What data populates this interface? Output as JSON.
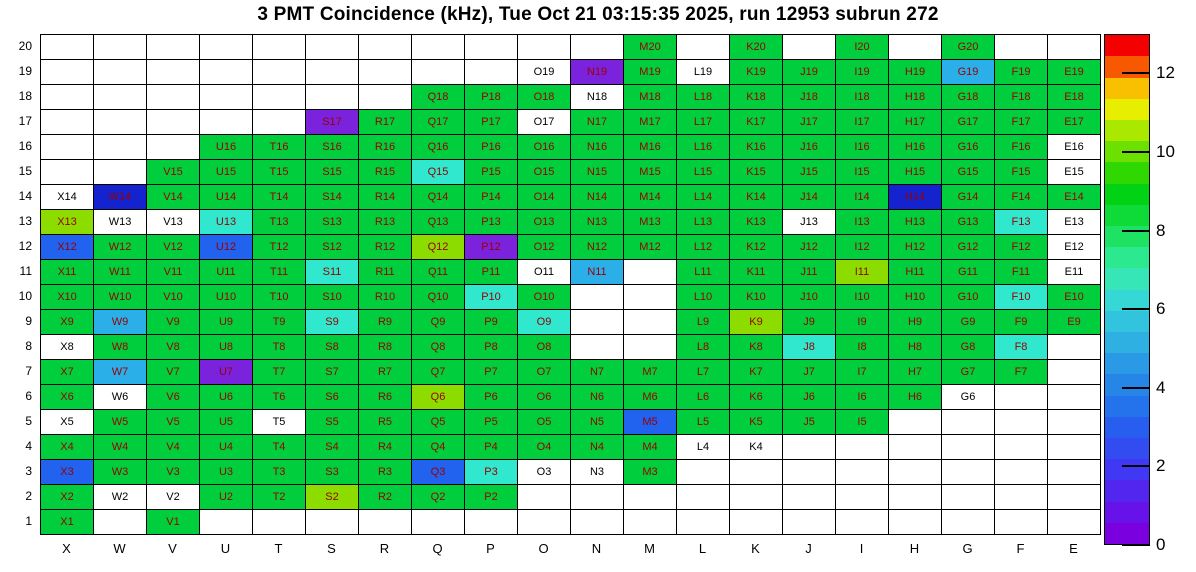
{
  "chart_data": {
    "type": "heatmap",
    "title": "3 PMT Coincidence (kHz), Tue Oct 21 03:15:35 2025, run 12953 subrun 272",
    "title_parts": {
      "metric": "3 PMT Coincidence (kHz)",
      "timestamp": "Tue Oct 21 03:15:35 2025",
      "run": "12953",
      "subrun": "272"
    },
    "columns": [
      "X",
      "W",
      "V",
      "U",
      "T",
      "S",
      "R",
      "Q",
      "P",
      "O",
      "N",
      "M",
      "L",
      "K",
      "J",
      "I",
      "H",
      "G",
      "F",
      "E"
    ],
    "rows": [
      20,
      19,
      18,
      17,
      16,
      15,
      14,
      13,
      12,
      11,
      10,
      9,
      8,
      7,
      6,
      5,
      4,
      3,
      2,
      1
    ],
    "palette": {
      "g": {
        "name": "green",
        "hex": "#00CE3C",
        "approx_kHz": 6.5
      },
      "yg": {
        "name": "yellow-green",
        "hex": "#8CDC00",
        "approx_kHz": 8.5
      },
      "c": {
        "name": "cyan",
        "hex": "#2FE8CE",
        "approx_kHz": 4.8
      },
      "lb": {
        "name": "light-blue",
        "hex": "#2BAFE8",
        "approx_kHz": 3.8
      },
      "b": {
        "name": "blue",
        "hex": "#2162EE",
        "approx_kHz": 2.6
      },
      "nb": {
        "name": "navy-blue",
        "hex": "#1423CE",
        "approx_kHz": 1.8
      },
      "p": {
        "name": "purple",
        "hex": "#7A22DC",
        "approx_kHz": 0.9
      },
      "w": {
        "name": "white-no-value",
        "hex": "#FFFFFF",
        "approx_kHz": null
      }
    },
    "label_color_colored_cells": "#990000",
    "label_color_white_cells": "#000000",
    "cells": [
      [
        null,
        null,
        null,
        null,
        null,
        null,
        null,
        null,
        null,
        null,
        null,
        [
          "M20",
          "g"
        ],
        null,
        [
          "K20",
          "g"
        ],
        null,
        [
          "I20",
          "g"
        ],
        null,
        [
          "G20",
          "g"
        ],
        null,
        null
      ],
      [
        null,
        null,
        null,
        null,
        null,
        null,
        null,
        null,
        null,
        [
          "O19",
          "w"
        ],
        [
          "N19",
          "p"
        ],
        [
          "M19",
          "g"
        ],
        [
          "L19",
          "w"
        ],
        [
          "K19",
          "g"
        ],
        [
          "J19",
          "g"
        ],
        [
          "I19",
          "g"
        ],
        [
          "H19",
          "g"
        ],
        [
          "G19",
          "lb"
        ],
        [
          "F19",
          "g"
        ],
        [
          "E19",
          "g"
        ]
      ],
      [
        null,
        null,
        null,
        null,
        null,
        null,
        null,
        [
          "Q18",
          "g"
        ],
        [
          "P18",
          "g"
        ],
        [
          "O18",
          "g"
        ],
        [
          "N18",
          "w"
        ],
        [
          "M18",
          "g"
        ],
        [
          "L18",
          "g"
        ],
        [
          "K18",
          "g"
        ],
        [
          "J18",
          "g"
        ],
        [
          "I18",
          "g"
        ],
        [
          "H18",
          "g"
        ],
        [
          "G18",
          "g"
        ],
        [
          "F18",
          "g"
        ],
        [
          "E18",
          "g"
        ]
      ],
      [
        null,
        null,
        null,
        null,
        null,
        [
          "S17",
          "p"
        ],
        [
          "R17",
          "g"
        ],
        [
          "Q17",
          "g"
        ],
        [
          "P17",
          "g"
        ],
        [
          "O17",
          "w"
        ],
        [
          "N17",
          "g"
        ],
        [
          "M17",
          "g"
        ],
        [
          "L17",
          "g"
        ],
        [
          "K17",
          "g"
        ],
        [
          "J17",
          "g"
        ],
        [
          "I17",
          "g"
        ],
        [
          "H17",
          "g"
        ],
        [
          "G17",
          "g"
        ],
        [
          "F17",
          "g"
        ],
        [
          "E17",
          "g"
        ]
      ],
      [
        null,
        null,
        null,
        [
          "U16",
          "g"
        ],
        [
          "T16",
          "g"
        ],
        [
          "S16",
          "g"
        ],
        [
          "R16",
          "g"
        ],
        [
          "Q16",
          "g"
        ],
        [
          "P16",
          "g"
        ],
        [
          "O16",
          "g"
        ],
        [
          "N16",
          "g"
        ],
        [
          "M16",
          "g"
        ],
        [
          "L16",
          "g"
        ],
        [
          "K16",
          "g"
        ],
        [
          "J16",
          "g"
        ],
        [
          "I16",
          "g"
        ],
        [
          "H16",
          "g"
        ],
        [
          "G16",
          "g"
        ],
        [
          "F16",
          "g"
        ],
        [
          "E16",
          "w"
        ]
      ],
      [
        null,
        null,
        [
          "V15",
          "g"
        ],
        [
          "U15",
          "g"
        ],
        [
          "T15",
          "g"
        ],
        [
          "S15",
          "g"
        ],
        [
          "R15",
          "g"
        ],
        [
          "Q15",
          "c"
        ],
        [
          "P15",
          "g"
        ],
        [
          "O15",
          "g"
        ],
        [
          "N15",
          "g"
        ],
        [
          "M15",
          "g"
        ],
        [
          "L15",
          "g"
        ],
        [
          "K15",
          "g"
        ],
        [
          "J15",
          "g"
        ],
        [
          "I15",
          "g"
        ],
        [
          "H15",
          "g"
        ],
        [
          "G15",
          "g"
        ],
        [
          "F15",
          "g"
        ],
        [
          "E15",
          "w"
        ]
      ],
      [
        [
          "X14",
          "w"
        ],
        [
          "W14",
          "nb"
        ],
        [
          "V14",
          "g"
        ],
        [
          "U14",
          "g"
        ],
        [
          "T14",
          "g"
        ],
        [
          "S14",
          "g"
        ],
        [
          "R14",
          "g"
        ],
        [
          "Q14",
          "g"
        ],
        [
          "P14",
          "g"
        ],
        [
          "O14",
          "g"
        ],
        [
          "N14",
          "g"
        ],
        [
          "M14",
          "g"
        ],
        [
          "L14",
          "g"
        ],
        [
          "K14",
          "g"
        ],
        [
          "J14",
          "g"
        ],
        [
          "I14",
          "g"
        ],
        [
          "H14",
          "nb"
        ],
        [
          "G14",
          "g"
        ],
        [
          "F14",
          "g"
        ],
        [
          "E14",
          "g"
        ]
      ],
      [
        [
          "X13",
          "yg"
        ],
        [
          "W13",
          "w"
        ],
        [
          "V13",
          "w"
        ],
        [
          "U13",
          "c"
        ],
        [
          "T13",
          "g"
        ],
        [
          "S13",
          "g"
        ],
        [
          "R13",
          "g"
        ],
        [
          "Q13",
          "g"
        ],
        [
          "P13",
          "g"
        ],
        [
          "O13",
          "g"
        ],
        [
          "N13",
          "g"
        ],
        [
          "M13",
          "g"
        ],
        [
          "L13",
          "g"
        ],
        [
          "K13",
          "g"
        ],
        [
          "J13",
          "w"
        ],
        [
          "I13",
          "g"
        ],
        [
          "H13",
          "g"
        ],
        [
          "G13",
          "g"
        ],
        [
          "F13",
          "c"
        ],
        [
          "E13",
          "w"
        ]
      ],
      [
        [
          "X12",
          "b"
        ],
        [
          "W12",
          "g"
        ],
        [
          "V12",
          "g"
        ],
        [
          "U12",
          "b"
        ],
        [
          "T12",
          "g"
        ],
        [
          "S12",
          "g"
        ],
        [
          "R12",
          "g"
        ],
        [
          "Q12",
          "yg"
        ],
        [
          "P12",
          "p"
        ],
        [
          "O12",
          "g"
        ],
        [
          "N12",
          "g"
        ],
        [
          "M12",
          "g"
        ],
        [
          "L12",
          "g"
        ],
        [
          "K12",
          "g"
        ],
        [
          "J12",
          "g"
        ],
        [
          "I12",
          "g"
        ],
        [
          "H12",
          "g"
        ],
        [
          "G12",
          "g"
        ],
        [
          "F12",
          "g"
        ],
        [
          "E12",
          "w"
        ]
      ],
      [
        [
          "X11",
          "g"
        ],
        [
          "W11",
          "g"
        ],
        [
          "V11",
          "g"
        ],
        [
          "U11",
          "g"
        ],
        [
          "T11",
          "g"
        ],
        [
          "S11",
          "c"
        ],
        [
          "R11",
          "g"
        ],
        [
          "Q11",
          "g"
        ],
        [
          "P11",
          "g"
        ],
        [
          "O11",
          "w"
        ],
        [
          "N11",
          "lb"
        ],
        null,
        [
          "L11",
          "g"
        ],
        [
          "K11",
          "g"
        ],
        [
          "J11",
          "g"
        ],
        [
          "I11",
          "yg"
        ],
        [
          "H11",
          "g"
        ],
        [
          "G11",
          "g"
        ],
        [
          "F11",
          "g"
        ],
        [
          "E11",
          "w"
        ]
      ],
      [
        [
          "X10",
          "g"
        ],
        [
          "W10",
          "g"
        ],
        [
          "V10",
          "g"
        ],
        [
          "U10",
          "g"
        ],
        [
          "T10",
          "g"
        ],
        [
          "S10",
          "g"
        ],
        [
          "R10",
          "g"
        ],
        [
          "Q10",
          "g"
        ],
        [
          "P10",
          "c"
        ],
        [
          "O10",
          "g"
        ],
        null,
        null,
        [
          "L10",
          "g"
        ],
        [
          "K10",
          "g"
        ],
        [
          "J10",
          "g"
        ],
        [
          "I10",
          "g"
        ],
        [
          "H10",
          "g"
        ],
        [
          "G10",
          "g"
        ],
        [
          "F10",
          "c"
        ],
        [
          "E10",
          "g"
        ]
      ],
      [
        [
          "X9",
          "g"
        ],
        [
          "W9",
          "lb"
        ],
        [
          "V9",
          "g"
        ],
        [
          "U9",
          "g"
        ],
        [
          "T9",
          "g"
        ],
        [
          "S9",
          "c"
        ],
        [
          "R9",
          "g"
        ],
        [
          "Q9",
          "g"
        ],
        [
          "P9",
          "g"
        ],
        [
          "O9",
          "c"
        ],
        null,
        null,
        [
          "L9",
          "g"
        ],
        [
          "K9",
          "yg"
        ],
        [
          "J9",
          "g"
        ],
        [
          "I9",
          "g"
        ],
        [
          "H9",
          "g"
        ],
        [
          "G9",
          "g"
        ],
        [
          "F9",
          "g"
        ],
        [
          "E9",
          "g"
        ]
      ],
      [
        [
          "X8",
          "w"
        ],
        [
          "W8",
          "g"
        ],
        [
          "V8",
          "g"
        ],
        [
          "U8",
          "g"
        ],
        [
          "T8",
          "g"
        ],
        [
          "S8",
          "g"
        ],
        [
          "R8",
          "g"
        ],
        [
          "Q8",
          "g"
        ],
        [
          "P8",
          "g"
        ],
        [
          "O8",
          "g"
        ],
        null,
        null,
        [
          "L8",
          "g"
        ],
        [
          "K8",
          "g"
        ],
        [
          "J8",
          "c"
        ],
        [
          "I8",
          "g"
        ],
        [
          "H8",
          "g"
        ],
        [
          "G8",
          "g"
        ],
        [
          "F8",
          "c"
        ],
        null
      ],
      [
        [
          "X7",
          "g"
        ],
        [
          "W7",
          "lb"
        ],
        [
          "V7",
          "g"
        ],
        [
          "U7",
          "p"
        ],
        [
          "T7",
          "g"
        ],
        [
          "S7",
          "g"
        ],
        [
          "R7",
          "g"
        ],
        [
          "Q7",
          "g"
        ],
        [
          "P7",
          "g"
        ],
        [
          "O7",
          "g"
        ],
        [
          "N7",
          "g"
        ],
        [
          "M7",
          "g"
        ],
        [
          "L7",
          "g"
        ],
        [
          "K7",
          "g"
        ],
        [
          "J7",
          "g"
        ],
        [
          "I7",
          "g"
        ],
        [
          "H7",
          "g"
        ],
        [
          "G7",
          "g"
        ],
        [
          "F7",
          "g"
        ],
        null
      ],
      [
        [
          "X6",
          "g"
        ],
        [
          "W6",
          "w"
        ],
        [
          "V6",
          "g"
        ],
        [
          "U6",
          "g"
        ],
        [
          "T6",
          "g"
        ],
        [
          "S6",
          "g"
        ],
        [
          "R6",
          "g"
        ],
        [
          "Q6",
          "yg"
        ],
        [
          "P6",
          "g"
        ],
        [
          "O6",
          "g"
        ],
        [
          "N6",
          "g"
        ],
        [
          "M6",
          "g"
        ],
        [
          "L6",
          "g"
        ],
        [
          "K6",
          "g"
        ],
        [
          "J6",
          "g"
        ],
        [
          "I6",
          "g"
        ],
        [
          "H6",
          "g"
        ],
        [
          "G6",
          "w"
        ],
        null,
        null
      ],
      [
        [
          "X5",
          "w"
        ],
        [
          "W5",
          "g"
        ],
        [
          "V5",
          "g"
        ],
        [
          "U5",
          "g"
        ],
        [
          "T5",
          "w"
        ],
        [
          "S5",
          "g"
        ],
        [
          "R5",
          "g"
        ],
        [
          "Q5",
          "g"
        ],
        [
          "P5",
          "g"
        ],
        [
          "O5",
          "g"
        ],
        [
          "N5",
          "g"
        ],
        [
          "M5",
          "b"
        ],
        [
          "L5",
          "g"
        ],
        [
          "K5",
          "g"
        ],
        [
          "J5",
          "g"
        ],
        [
          "I5",
          "g"
        ],
        null,
        null,
        null,
        null
      ],
      [
        [
          "X4",
          "g"
        ],
        [
          "W4",
          "g"
        ],
        [
          "V4",
          "g"
        ],
        [
          "U4",
          "g"
        ],
        [
          "T4",
          "g"
        ],
        [
          "S4",
          "g"
        ],
        [
          "R4",
          "g"
        ],
        [
          "Q4",
          "g"
        ],
        [
          "P4",
          "g"
        ],
        [
          "O4",
          "g"
        ],
        [
          "N4",
          "g"
        ],
        [
          "M4",
          "g"
        ],
        [
          "L4",
          "w"
        ],
        [
          "K4",
          "w"
        ],
        null,
        null,
        null,
        null,
        null,
        null
      ],
      [
        [
          "X3",
          "b"
        ],
        [
          "W3",
          "g"
        ],
        [
          "V3",
          "g"
        ],
        [
          "U3",
          "g"
        ],
        [
          "T3",
          "g"
        ],
        [
          "S3",
          "g"
        ],
        [
          "R3",
          "g"
        ],
        [
          "Q3",
          "b"
        ],
        [
          "P3",
          "c"
        ],
        [
          "O3",
          "w"
        ],
        [
          "N3",
          "w"
        ],
        [
          "M3",
          "g"
        ],
        null,
        null,
        null,
        null,
        null,
        null,
        null,
        null
      ],
      [
        [
          "X2",
          "g"
        ],
        [
          "W2",
          "w"
        ],
        [
          "V2",
          "w"
        ],
        [
          "U2",
          "g"
        ],
        [
          "T2",
          "g"
        ],
        [
          "S2",
          "yg"
        ],
        [
          "R2",
          "g"
        ],
        [
          "Q2",
          "g"
        ],
        [
          "P2",
          "g"
        ],
        null,
        null,
        null,
        null,
        null,
        null,
        null,
        null,
        null,
        null,
        null
      ],
      [
        [
          "X1",
          "g"
        ],
        null,
        [
          "V1",
          "g"
        ],
        null,
        null,
        null,
        null,
        null,
        null,
        null,
        null,
        null,
        null,
        null,
        null,
        null,
        null,
        null,
        null,
        null
      ]
    ],
    "colorbar": {
      "min": 0,
      "max": 13,
      "ticks": [
        0,
        2,
        4,
        6,
        8,
        10,
        12
      ],
      "colors_bottom_to_top": [
        "#7A00E0",
        "#6612E8",
        "#5226EE",
        "#4038F2",
        "#324CF2",
        "#285EF0",
        "#2472EC",
        "#2686E8",
        "#2A9AE6",
        "#2EB0E2",
        "#32C4DE",
        "#36D8D6",
        "#36E6B6",
        "#2CE88E",
        "#1EE262",
        "#0EDA38",
        "#02D214",
        "#2ED800",
        "#6CE000",
        "#AAE800",
        "#E8EE00",
        "#F8C000",
        "#F85800",
        "#F40000"
      ]
    }
  }
}
